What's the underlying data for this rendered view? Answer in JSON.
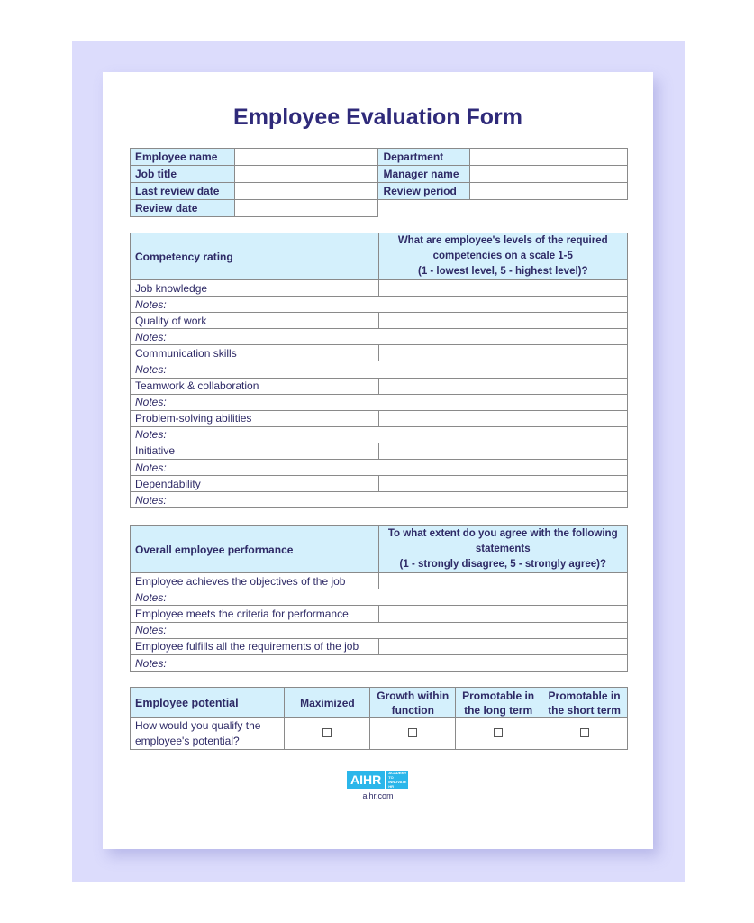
{
  "title": "Employee Evaluation Form",
  "info": {
    "employee_name": "Employee name",
    "job_title": "Job title",
    "last_review_date": "Last review date",
    "review_date": "Review date",
    "department": "Department",
    "manager_name": "Manager name",
    "review_period": "Review period"
  },
  "competency": {
    "header": "Competency rating",
    "question": [
      "What are employee's levels of the required",
      "competencies on a scale 1-5",
      "(1 - lowest level, 5 - highest level)?"
    ],
    "items": [
      "Job knowledge",
      "Quality of work",
      "Communication skills",
      "Teamwork & collaboration",
      "Problem-solving abilities",
      "Initiative",
      "Dependability"
    ],
    "notes": "Notes:"
  },
  "performance": {
    "header": "Overall employee performance",
    "question": [
      "To what extent do you agree with the following",
      "statements",
      "(1 - strongly disagree, 5 - strongly agree)?"
    ],
    "items": [
      "Employee achieves the objectives of the job",
      "Employee meets the criteria for performance",
      "Employee fulfills all the requirements of the job"
    ],
    "notes": "Notes:"
  },
  "potential": {
    "header": "Employee potential",
    "columns": [
      "Maximized",
      "Growth within function",
      "Promotable in the long term",
      "Promotable in the short term"
    ],
    "question": "How would you qualify the employee's potential?"
  },
  "footer": {
    "logo": "AIHR",
    "logo_tagline": "ACADEMY TO INNOVATE HR",
    "link": "aihr.com"
  },
  "colors": {
    "background": "#dcdcfc",
    "header_cell": "#d4f0fc",
    "text": "#2e2a66",
    "logo": "#2bb6ea"
  }
}
